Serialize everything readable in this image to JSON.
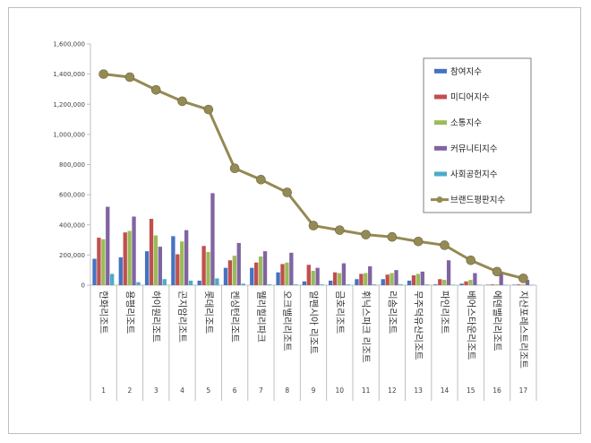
{
  "chart_data": {
    "type": "bar",
    "categories": [
      "한화리조트",
      "용평리조트",
      "하이원리조트",
      "곤지암리조트",
      "롯데리조트",
      "켄싱턴리조트",
      "웰리힐리파크",
      "오크밸리리조트",
      "알펜시아 리조트",
      "금호리조트",
      "휘닉스파크 리조트",
      "리솜리조트",
      "무주덕유산리조트",
      "파인리조트",
      "베어스타운리조트",
      "에덴밸리리조트",
      "지산포레스트리조트"
    ],
    "ranks": [
      "1",
      "2",
      "3",
      "4",
      "5",
      "6",
      "7",
      "8",
      "9",
      "10",
      "11",
      "12",
      "13",
      "14",
      "15",
      "16",
      "17"
    ],
    "series": [
      {
        "name": "참여지수",
        "color": "#4472c4",
        "values": [
          175000,
          185000,
          225000,
          325000,
          30000,
          115000,
          115000,
          85000,
          25000,
          30000,
          40000,
          40000,
          30000,
          5000,
          10000,
          3000,
          3000
        ]
      },
      {
        "name": "미디어지수",
        "color": "#c0504d",
        "values": [
          315000,
          350000,
          440000,
          205000,
          260000,
          165000,
          150000,
          140000,
          135000,
          85000,
          75000,
          70000,
          65000,
          40000,
          25000,
          5000,
          5000
        ]
      },
      {
        "name": "소통지수",
        "color": "#9bbb59",
        "values": [
          305000,
          360000,
          330000,
          290000,
          220000,
          195000,
          190000,
          150000,
          95000,
          80000,
          80000,
          80000,
          75000,
          35000,
          35000,
          5000,
          5000
        ]
      },
      {
        "name": "커뮤니티지수",
        "color": "#8064a2",
        "values": [
          520000,
          455000,
          255000,
          365000,
          610000,
          280000,
          225000,
          215000,
          115000,
          145000,
          125000,
          100000,
          90000,
          165000,
          80000,
          85000,
          35000
        ]
      },
      {
        "name": "사회공헌지수",
        "color": "#4bacc6",
        "values": [
          75000,
          20000,
          40000,
          30000,
          45000,
          10000,
          5000,
          5000,
          5000,
          5000,
          5000,
          5000,
          5000,
          3000,
          3000,
          2000,
          2000
        ]
      }
    ],
    "line_series": {
      "name": "브랜드평판지수",
      "color": "#948a54",
      "values": [
        1400000,
        1380000,
        1295000,
        1220000,
        1165000,
        775000,
        700000,
        615000,
        395000,
        365000,
        335000,
        320000,
        290000,
        265000,
        165000,
        90000,
        45000
      ]
    },
    "y_ticks": [
      "0",
      "200,000",
      "400,000",
      "600,000",
      "800,000",
      "1,000,000",
      "1,200,000",
      "1,400,000",
      "1,600,000"
    ],
    "ylim": [
      0,
      1600000
    ],
    "legend_position": "top-right",
    "grid": false
  }
}
